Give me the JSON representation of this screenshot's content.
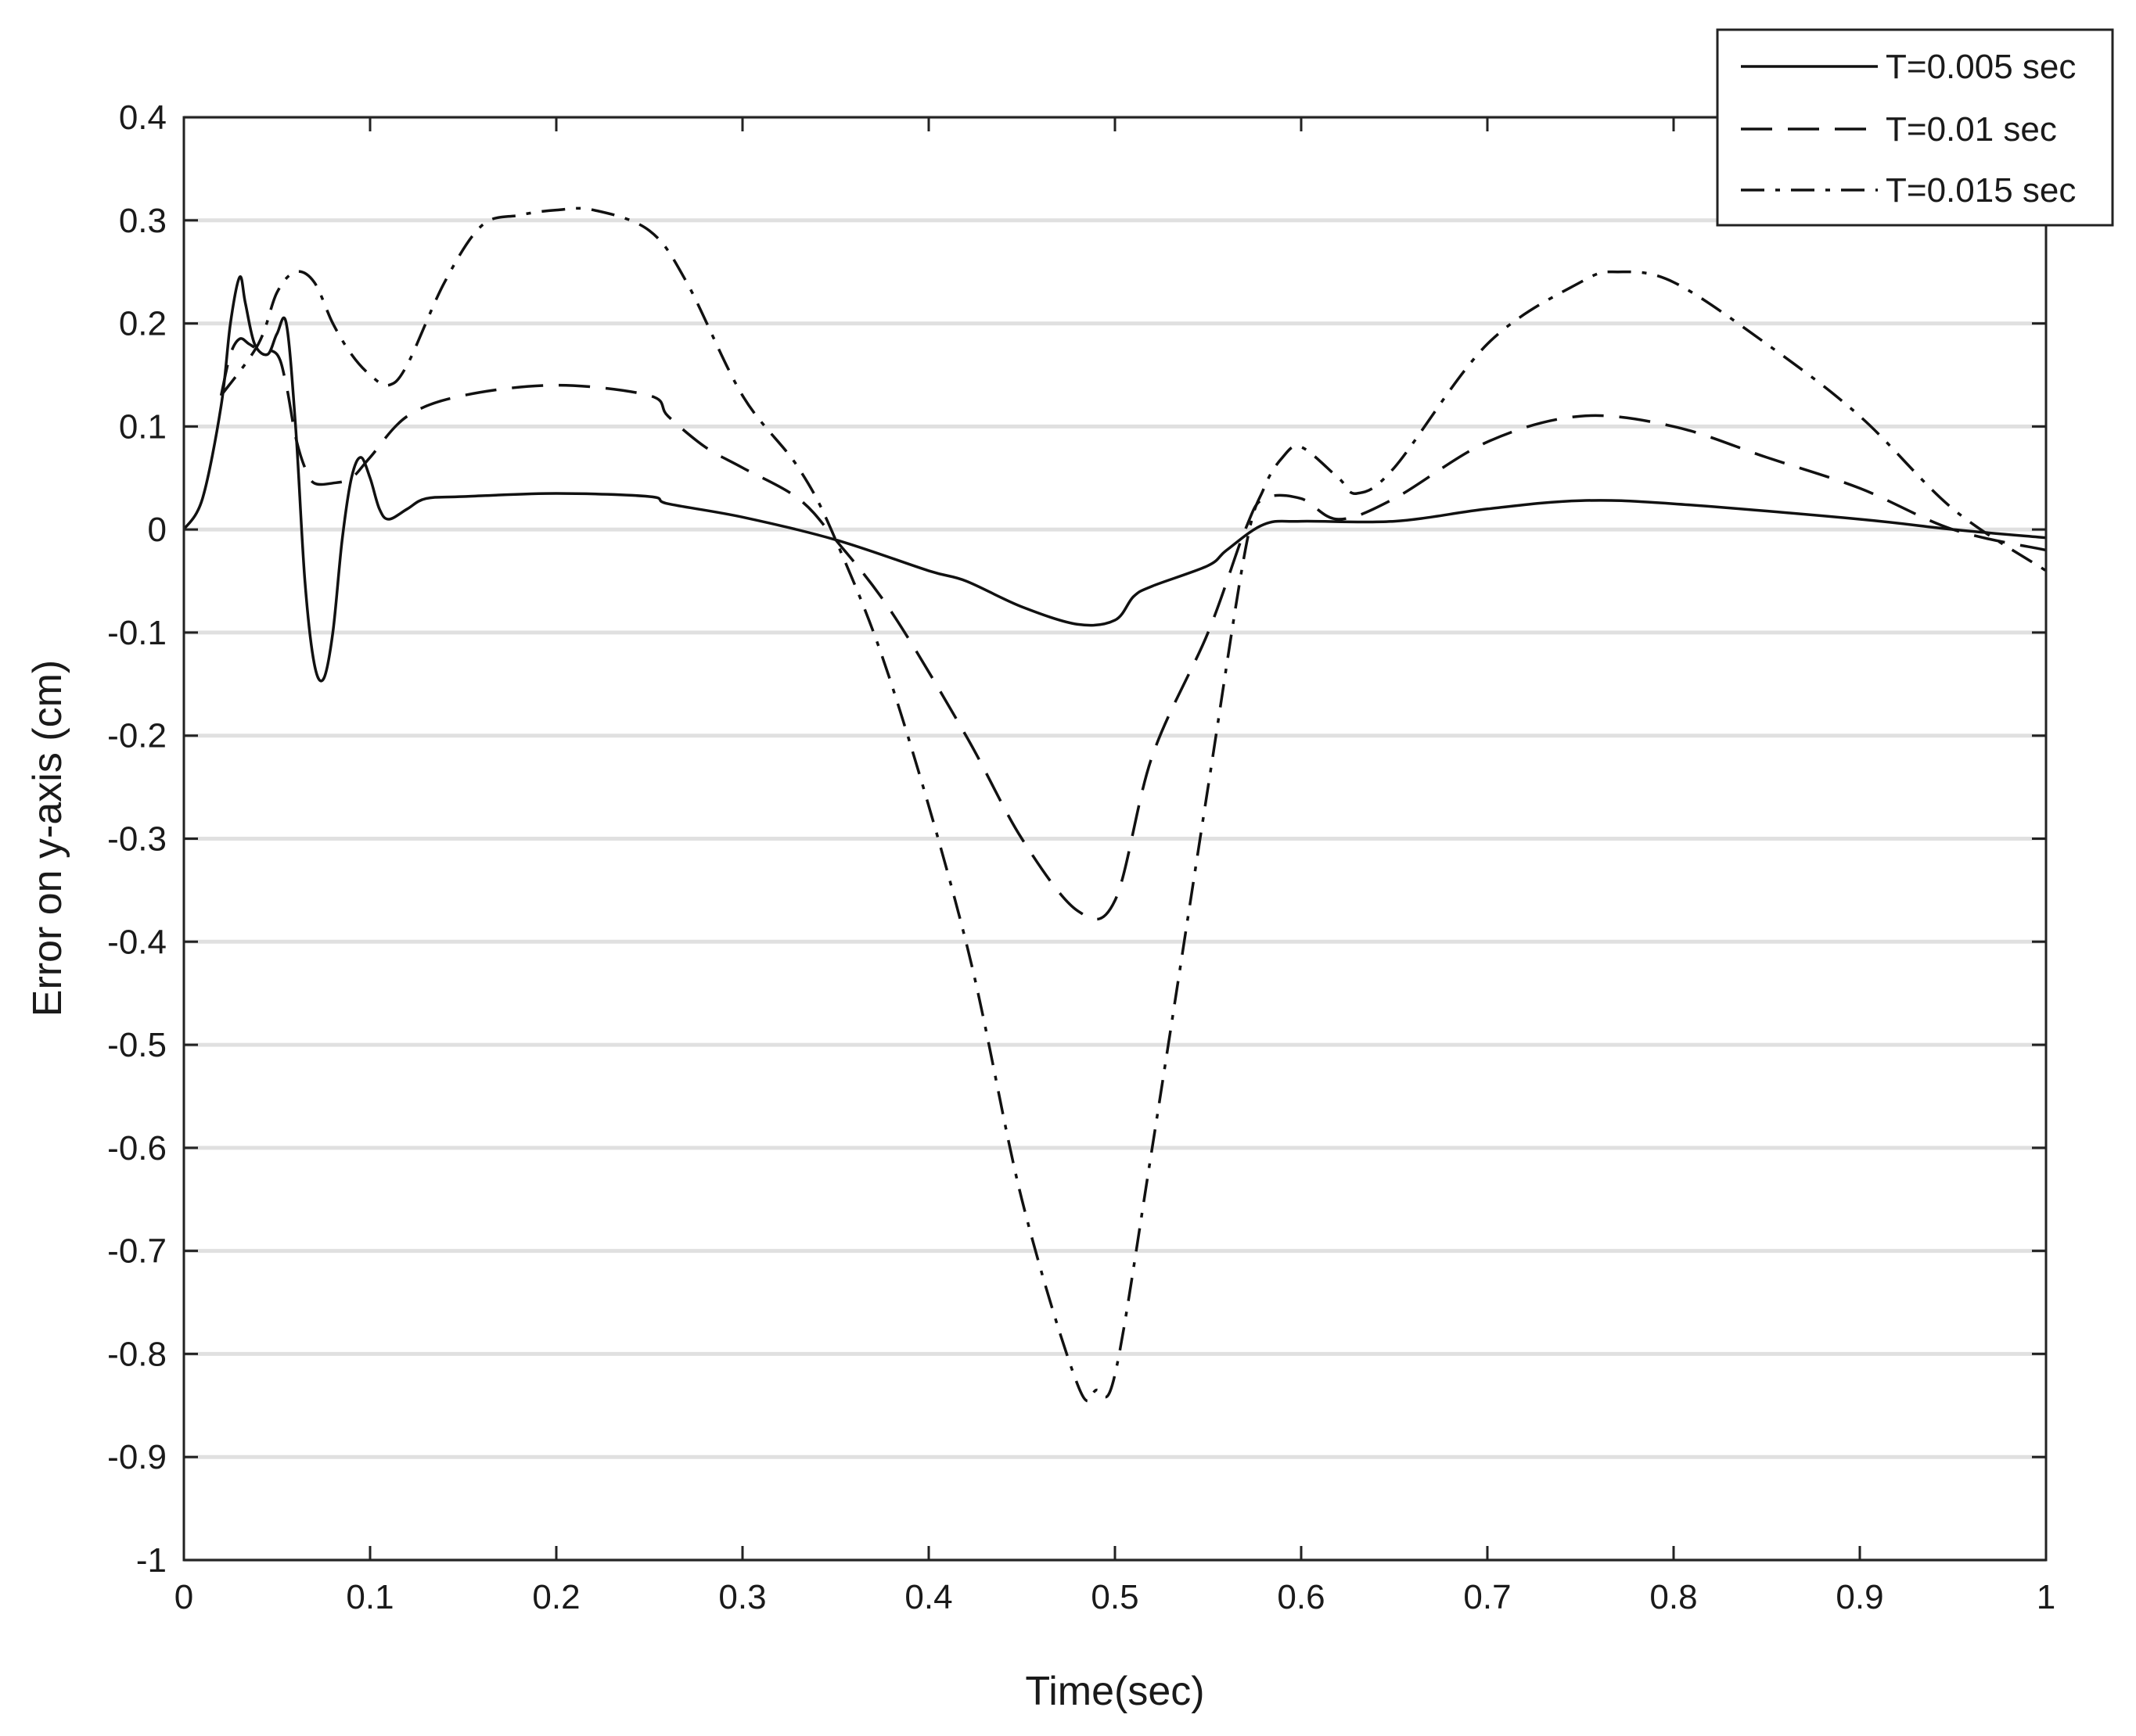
{
  "chart_data": {
    "type": "line",
    "title": "",
    "xlabel": "Time(sec)",
    "ylabel": "Error on y-axis (cm)",
    "xlim": [
      0,
      1
    ],
    "ylim": [
      -1,
      0.4
    ],
    "grid": "horizontal",
    "legend_position": "top-right",
    "x_ticks": [
      {
        "value": 0,
        "label": "0"
      },
      {
        "value": 0.1,
        "label": "0.1"
      },
      {
        "value": 0.2,
        "label": "0.2"
      },
      {
        "value": 0.3,
        "label": "0.3"
      },
      {
        "value": 0.4,
        "label": "0.4"
      },
      {
        "value": 0.5,
        "label": "0.5"
      },
      {
        "value": 0.6,
        "label": "0.6"
      },
      {
        "value": 0.7,
        "label": "0.7"
      },
      {
        "value": 0.8,
        "label": "0.8"
      },
      {
        "value": 0.9,
        "label": "0.9"
      },
      {
        "value": 1,
        "label": "1"
      }
    ],
    "y_ticks": [
      {
        "value": 0.4,
        "label": "0.4"
      },
      {
        "value": 0.3,
        "label": "0.3"
      },
      {
        "value": 0.2,
        "label": "0.2"
      },
      {
        "value": 0.1,
        "label": "0.1"
      },
      {
        "value": 0,
        "label": "0"
      },
      {
        "value": -0.1,
        "label": "-0.1"
      },
      {
        "value": -0.2,
        "label": "-0.2"
      },
      {
        "value": -0.3,
        "label": "-0.3"
      },
      {
        "value": -0.4,
        "label": "-0.4"
      },
      {
        "value": -0.5,
        "label": "-0.5"
      },
      {
        "value": -0.6,
        "label": "-0.6"
      },
      {
        "value": -0.7,
        "label": "-0.7"
      },
      {
        "value": -0.8,
        "label": "-0.8"
      },
      {
        "value": -0.9,
        "label": "-0.9"
      },
      {
        "value": -1,
        "label": "-1"
      }
    ],
    "series": [
      {
        "name": "T=0.005 sec",
        "line_style": "solid",
        "color": "#111111",
        "x": [
          0,
          0.01,
          0.02,
          0.025,
          0.03,
          0.033,
          0.038,
          0.045,
          0.05,
          0.055,
          0.06,
          0.065,
          0.07,
          0.075,
          0.08,
          0.085,
          0.09,
          0.095,
          0.1,
          0.105,
          0.11,
          0.12,
          0.13,
          0.15,
          0.2,
          0.25,
          0.26,
          0.3,
          0.35,
          0.4,
          0.42,
          0.45,
          0.48,
          0.5,
          0.51,
          0.52,
          0.55,
          0.56,
          0.58,
          0.6,
          0.65,
          0.7,
          0.75,
          0.8,
          0.9,
          0.95,
          1.0
        ],
        "y": [
          0,
          0.03,
          0.12,
          0.2,
          0.245,
          0.22,
          0.18,
          0.17,
          0.19,
          0.2,
          0.1,
          -0.05,
          -0.13,
          -0.145,
          -0.1,
          -0.01,
          0.05,
          0.07,
          0.05,
          0.02,
          0.01,
          0.02,
          0.03,
          0.032,
          0.035,
          0.032,
          0.025,
          0.012,
          -0.01,
          -0.04,
          -0.05,
          -0.075,
          -0.092,
          -0.088,
          -0.065,
          -0.055,
          -0.035,
          -0.02,
          0.005,
          0.008,
          0.008,
          0.02,
          0.028,
          0.025,
          0.01,
          0.0,
          -0.008
        ]
      },
      {
        "name": "T=0.01 sec",
        "line_style": "dashed",
        "color": "#111111",
        "x": [
          0.02,
          0.025,
          0.03,
          0.035,
          0.04,
          0.05,
          0.055,
          0.06,
          0.065,
          0.07,
          0.08,
          0.09,
          0.1,
          0.12,
          0.15,
          0.2,
          0.25,
          0.26,
          0.28,
          0.3,
          0.33,
          0.35,
          0.38,
          0.42,
          0.45,
          0.48,
          0.5,
          0.52,
          0.55,
          0.57,
          0.58,
          0.6,
          0.62,
          0.65,
          0.7,
          0.75,
          0.8,
          0.85,
          0.9,
          0.95,
          1.0
        ],
        "y": [
          0.13,
          0.17,
          0.185,
          0.18,
          0.175,
          0.17,
          0.14,
          0.09,
          0.06,
          0.045,
          0.045,
          0.05,
          0.07,
          0.11,
          0.13,
          0.14,
          0.13,
          0.11,
          0.08,
          0.06,
          0.03,
          -0.01,
          -0.08,
          -0.2,
          -0.3,
          -0.37,
          -0.36,
          -0.22,
          -0.1,
          0.0,
          0.03,
          0.03,
          0.01,
          0.03,
          0.085,
          0.11,
          0.1,
          0.07,
          0.04,
          0.0,
          -0.02
        ]
      },
      {
        "name": "T=0.015 sec",
        "line_style": "dash-dot",
        "color": "#111111",
        "x": [
          0.02,
          0.04,
          0.05,
          0.06,
          0.07,
          0.08,
          0.09,
          0.1,
          0.11,
          0.12,
          0.14,
          0.16,
          0.18,
          0.2,
          0.22,
          0.25,
          0.27,
          0.3,
          0.33,
          0.35,
          0.38,
          0.42,
          0.45,
          0.48,
          0.49,
          0.5,
          0.52,
          0.55,
          0.57,
          0.58,
          0.59,
          0.6,
          0.62,
          0.63,
          0.65,
          0.7,
          0.75,
          0.77,
          0.8,
          0.85,
          0.9,
          0.95,
          1.0
        ],
        "y": [
          0.13,
          0.18,
          0.23,
          0.25,
          0.24,
          0.2,
          0.17,
          0.15,
          0.14,
          0.16,
          0.24,
          0.295,
          0.305,
          0.31,
          0.31,
          0.29,
          0.24,
          0.13,
          0.06,
          -0.01,
          -0.15,
          -0.4,
          -0.65,
          -0.83,
          -0.835,
          -0.82,
          -0.6,
          -0.25,
          -0.02,
          0.04,
          0.07,
          0.08,
          0.05,
          0.035,
          0.06,
          0.18,
          0.24,
          0.25,
          0.24,
          0.18,
          0.11,
          0.02,
          -0.04
        ]
      }
    ]
  }
}
